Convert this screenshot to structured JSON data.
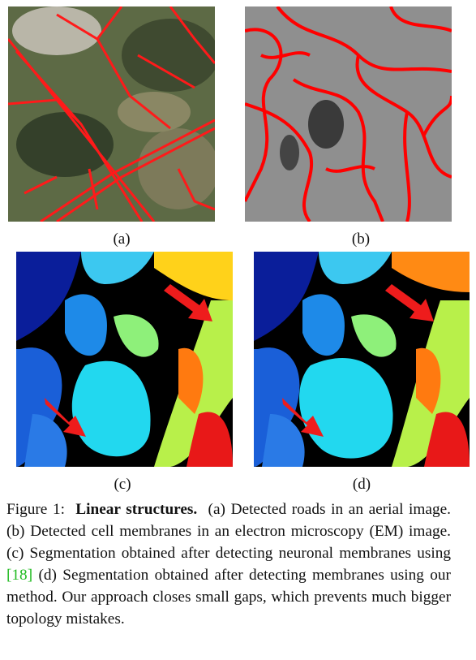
{
  "panels": [
    {
      "label": "(a)"
    },
    {
      "label": "(b)"
    },
    {
      "label": "(c)"
    },
    {
      "label": "(d)"
    }
  ],
  "caption": {
    "label": "Figure 1:",
    "title": "Linear structures.",
    "text_before_citation": "(a) Detected roads in an aerial image. (b) Detected cell membranes in an electron microscopy (EM) image. (c) Segmentation obtained after detecting neuronal membranes using",
    "citation": "[18]",
    "text_after_citation": "(d) Segmentation obtained after detecting membranes using our method. Our approach closes small gaps, which prevents much bigger topology mistakes."
  }
}
